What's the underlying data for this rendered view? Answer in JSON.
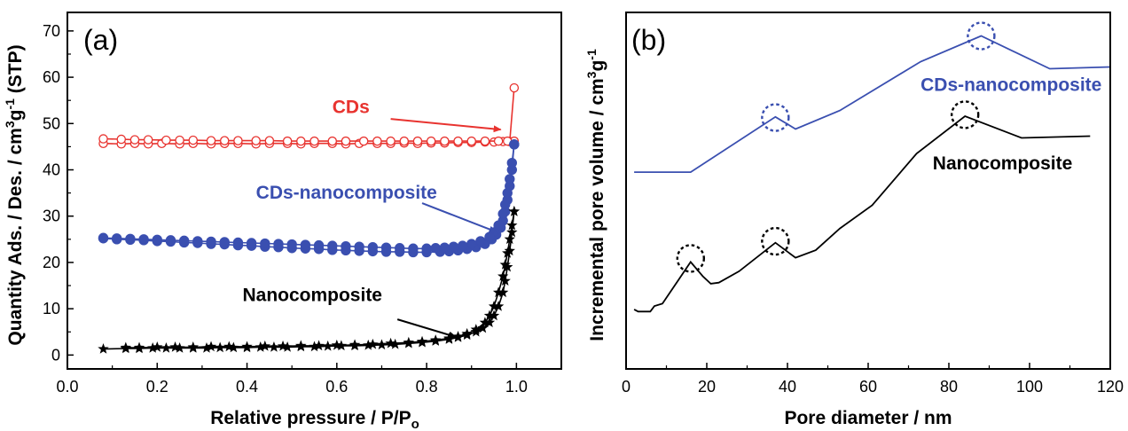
{
  "chart_data": [
    {
      "panel": "(a)",
      "type": "scatter",
      "xlabel": "Relative pressure / P/P",
      "xlabel_sub": "o",
      "ylabel": "Quantity Ads. / Des. / cm",
      "ylabel_sup": "3",
      "ylabel_mid": "g",
      "ylabel_sup2": "-1",
      "ylabel_end": " (STP)",
      "xlim": [
        0.0,
        1.1
      ],
      "ylim": [
        -3,
        74
      ],
      "xticks": [
        0.0,
        0.2,
        0.4,
        0.6,
        0.8,
        1.0
      ],
      "yticks": [
        0,
        10,
        20,
        30,
        40,
        50,
        60,
        70
      ],
      "series": [
        {
          "name": "CDs",
          "color": "#e8332f",
          "marker": "open-circle",
          "adsorption": {
            "x": [
              0.08,
              0.12,
              0.15,
              0.18,
              0.21,
              0.25,
              0.28,
              0.32,
              0.35,
              0.38,
              0.42,
              0.45,
              0.49,
              0.52,
              0.55,
              0.59,
              0.62,
              0.65,
              0.69,
              0.72,
              0.75,
              0.78,
              0.81,
              0.84,
              0.87,
              0.9,
              0.93,
              0.95,
              0.97,
              0.985,
              0.995
            ],
            "y": [
              45.7,
              45.6,
              45.7,
              45.6,
              45.7,
              45.6,
              45.7,
              45.6,
              45.7,
              45.7,
              45.6,
              45.7,
              45.7,
              45.6,
              45.7,
              45.7,
              45.6,
              45.7,
              45.7,
              45.7,
              45.8,
              45.7,
              45.8,
              45.8,
              45.9,
              45.9,
              46.0,
              46.0,
              46.1,
              46.1,
              57.7
            ]
          },
          "desorption": {
            "x": [
              0.995,
              0.98,
              0.96,
              0.93,
              0.9,
              0.87,
              0.84,
              0.81,
              0.78,
              0.75,
              0.72,
              0.69,
              0.66,
              0.62,
              0.59,
              0.55,
              0.52,
              0.49,
              0.45,
              0.42,
              0.38,
              0.35,
              0.32,
              0.28,
              0.25,
              0.22,
              0.18,
              0.15,
              0.12,
              0.08
            ],
            "y": [
              46.2,
              46.2,
              46.2,
              46.2,
              46.2,
              46.2,
              46.2,
              46.2,
              46.2,
              46.2,
              46.2,
              46.2,
              46.2,
              46.2,
              46.2,
              46.2,
              46.2,
              46.2,
              46.3,
              46.3,
              46.3,
              46.3,
              46.3,
              46.4,
              46.4,
              46.4,
              46.5,
              46.5,
              46.6,
              46.7
            ]
          }
        },
        {
          "name": "CDs-nanocomposite",
          "color": "#3a4fb0",
          "marker": "filled-circle",
          "adsorption": {
            "x": [
              0.08,
              0.11,
              0.14,
              0.17,
              0.2,
              0.23,
              0.26,
              0.29,
              0.32,
              0.35,
              0.38,
              0.41,
              0.44,
              0.47,
              0.5,
              0.53,
              0.56,
              0.59,
              0.62,
              0.65,
              0.68,
              0.71,
              0.74,
              0.77,
              0.8,
              0.83,
              0.85,
              0.87,
              0.89,
              0.91,
              0.93,
              0.945,
              0.955,
              0.965,
              0.97,
              0.975,
              0.98,
              0.985,
              0.99,
              0.995
            ],
            "y": [
              25.2,
              25.0,
              24.9,
              24.8,
              24.6,
              24.5,
              24.3,
              24.2,
              24.0,
              23.9,
              23.7,
              23.6,
              23.4,
              23.3,
              23.1,
              23.0,
              22.9,
              22.7,
              22.6,
              22.5,
              22.4,
              22.3,
              22.3,
              22.2,
              22.2,
              22.3,
              22.4,
              22.6,
              22.9,
              23.3,
              24.0,
              25.0,
              26.0,
              27.5,
              29.0,
              31.0,
              33.5,
              36.5,
              40.0,
              45.5
            ]
          },
          "desorption": {
            "x": [
              0.995,
              0.99,
              0.985,
              0.98,
              0.975,
              0.97,
              0.96,
              0.95,
              0.94,
              0.92,
              0.9,
              0.88,
              0.86,
              0.84,
              0.82,
              0.8,
              0.77,
              0.74,
              0.71,
              0.68,
              0.65,
              0.62,
              0.59,
              0.56,
              0.53,
              0.5,
              0.47,
              0.44,
              0.41,
              0.38,
              0.35,
              0.32,
              0.29,
              0.26,
              0.23,
              0.2,
              0.17,
              0.14,
              0.11,
              0.08
            ],
            "y": [
              45.5,
              41.5,
              38.0,
              35.0,
              32.5,
              30.5,
              28.0,
              26.5,
              25.5,
              24.6,
              24.0,
              23.6,
              23.4,
              23.2,
              23.1,
              23.0,
              23.0,
              23.1,
              23.2,
              23.3,
              23.4,
              23.5,
              23.6,
              23.7,
              23.8,
              23.9,
              24.0,
              24.1,
              24.2,
              24.3,
              24.4,
              24.5,
              24.6,
              24.7,
              24.8,
              24.9,
              25.0,
              25.1,
              25.2,
              25.3
            ]
          }
        },
        {
          "name": "Nanocomposite",
          "color": "#000000",
          "marker": "star",
          "adsorption": {
            "x": [
              0.08,
              0.13,
              0.16,
              0.19,
              0.22,
              0.25,
              0.28,
              0.31,
              0.34,
              0.37,
              0.4,
              0.43,
              0.46,
              0.49,
              0.52,
              0.55,
              0.58,
              0.61,
              0.64,
              0.67,
              0.7,
              0.73,
              0.76,
              0.79,
              0.82,
              0.85,
              0.87,
              0.89,
              0.91,
              0.925,
              0.94,
              0.95,
              0.96,
              0.97,
              0.975,
              0.98,
              0.985,
              0.99,
              0.995
            ],
            "y": [
              1.3,
              1.4,
              1.4,
              1.5,
              1.5,
              1.5,
              1.5,
              1.5,
              1.6,
              1.6,
              1.6,
              1.7,
              1.7,
              1.7,
              1.8,
              1.8,
              1.9,
              2.0,
              2.0,
              2.1,
              2.2,
              2.3,
              2.5,
              2.7,
              3.0,
              3.4,
              3.8,
              4.3,
              5.0,
              5.8,
              7.0,
              8.5,
              10.5,
              13.5,
              16.0,
              19.0,
              22.5,
              26.5,
              31.0
            ]
          },
          "desorption": {
            "x": [
              0.995,
              0.99,
              0.985,
              0.98,
              0.975,
              0.97,
              0.96,
              0.95,
              0.94,
              0.93,
              0.91,
              0.89,
              0.87,
              0.85,
              0.82,
              0.79,
              0.76,
              0.72,
              0.68,
              0.64,
              0.6,
              0.56,
              0.52,
              0.48,
              0.44,
              0.4,
              0.36,
              0.32,
              0.28,
              0.24,
              0.2,
              0.16,
              0.13
            ],
            "y": [
              31.0,
              28.0,
              25.0,
              22.0,
              19.5,
              17.0,
              13.5,
              10.5,
              8.5,
              7.0,
              5.5,
              4.6,
              4.0,
              3.6,
              3.2,
              2.9,
              2.7,
              2.5,
              2.3,
              2.2,
              2.1,
              2.0,
              2.0,
              1.9,
              1.9,
              1.8,
              1.8,
              1.8,
              1.7,
              1.7,
              1.7,
              1.6,
              1.6
            ]
          }
        }
      ],
      "annotations": [
        {
          "text": "CDs",
          "color": "#e8332f",
          "from": [
            0.72,
            51.0
          ],
          "to": [
            0.965,
            48.7
          ],
          "label_at": [
            0.59,
            52.3
          ]
        },
        {
          "text": "CDs-nanocomposite",
          "color": "#3a4fb0",
          "from": [
            0.79,
            32.8
          ],
          "to": [
            0.955,
            26.6
          ],
          "label_at": [
            0.42,
            33.8
          ]
        },
        {
          "text": "Nanocomposite",
          "color": "#000000",
          "from": [
            0.735,
            7.7
          ],
          "to": [
            0.865,
            3.9
          ],
          "label_at": [
            0.39,
            11.7
          ]
        }
      ]
    },
    {
      "panel": "(b)",
      "type": "line",
      "xlabel": "Pore diameter / nm",
      "ylabel": "Incremental pore volume / cm",
      "ylabel_sup": "3",
      "ylabel_mid": "g",
      "ylabel_sup2": "-1",
      "y_ticks_shown": false,
      "xlim": [
        0,
        120
      ],
      "ylim": [
        0,
        100
      ],
      "xticks": [
        0,
        20,
        40,
        60,
        80,
        100,
        120
      ],
      "series": [
        {
          "name": "CDs-nanocomposite",
          "color": "#3a4fb0",
          "x": [
            2,
            16,
            37,
            42,
            53,
            73,
            88,
            105,
            120
          ],
          "y": [
            55.2,
            55.2,
            70.7,
            67.3,
            72.5,
            86.2,
            93.4,
            84.2,
            84.7
          ]
        },
        {
          "name": "Nanocomposite",
          "color": "#000000",
          "x": [
            2,
            3,
            6,
            7,
            9,
            16,
            19,
            21,
            23,
            28,
            37,
            42,
            47,
            53,
            61,
            72,
            84,
            98,
            115
          ],
          "y": [
            16.7,
            16.1,
            16.1,
            17.6,
            18.3,
            30.0,
            26.0,
            23.9,
            24.2,
            27.4,
            35.4,
            31.2,
            33.3,
            39.4,
            45.9,
            60.4,
            70.9,
            64.8,
            65.3
          ]
        }
      ],
      "circle_markers": [
        {
          "x": 16,
          "y": 31.0,
          "color": "#000000"
        },
        {
          "x": 37,
          "y": 35.8,
          "color": "#000000"
        },
        {
          "x": 84,
          "y": 71.3,
          "color": "#000000"
        },
        {
          "x": 37,
          "y": 70.5,
          "color": "#3a4fb0"
        },
        {
          "x": 88,
          "y": 93.4,
          "color": "#3a4fb0"
        }
      ],
      "annotations": [
        {
          "text": "CDs-nanocomposite",
          "color": "#3a4fb0",
          "at": [
            73,
            78.0
          ]
        },
        {
          "text": "Nanocomposite",
          "color": "#000000",
          "at": [
            76,
            56.0
          ]
        }
      ]
    }
  ]
}
